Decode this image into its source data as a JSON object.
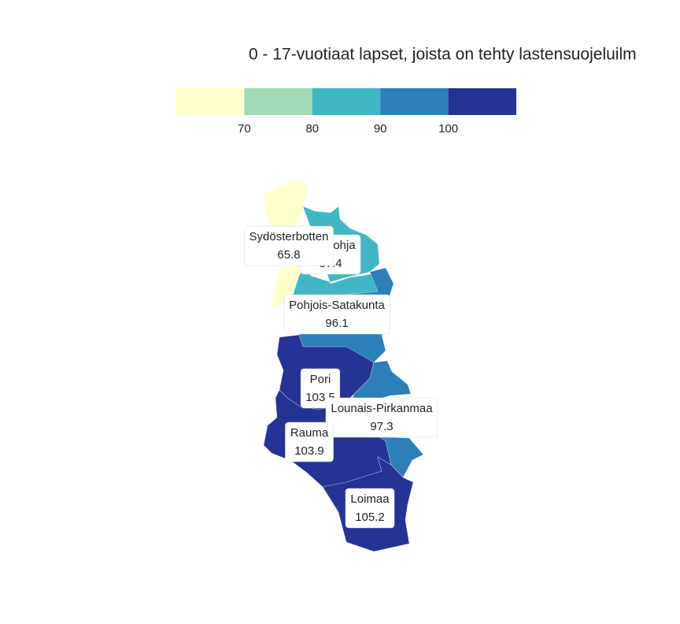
{
  "title": "0 - 17-vuotiaat lapset, joista on tehty lastensuojeluilm",
  "legend": {
    "lim": [
      60,
      110
    ],
    "colors": [
      "#ffffcc",
      "#a1dab4",
      "#41b6c4",
      "#2c7fb8",
      "#253494"
    ],
    "ticks": [
      70,
      80,
      90,
      100
    ]
  },
  "regions": [
    {
      "name": "Suupohja",
      "value": 87.4
    },
    {
      "name": "Sydösterbotten",
      "value": 65.8
    },
    {
      "name": "Pohjois-Satakunta",
      "value": 96.1
    },
    {
      "name": "Pori",
      "value": 103.5
    },
    {
      "name": "Lounais-Pirkanmaa",
      "value": 97.3
    },
    {
      "name": "Rauma",
      "value": 103.9
    },
    {
      "name": "Loimaa",
      "value": 105.2
    }
  ]
}
